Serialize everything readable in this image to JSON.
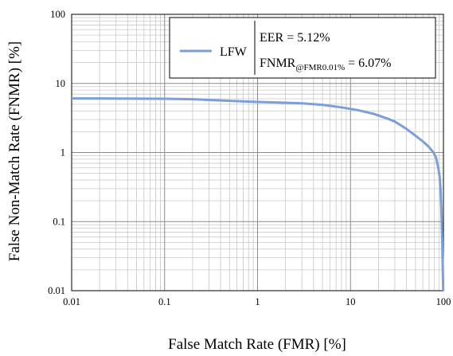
{
  "chart_data": {
    "type": "line",
    "x_scale": "log",
    "y_scale": "log",
    "xlabel": "False Match Rate (FMR) [%]",
    "ylabel": "False Non-Match Rate (FNMR) [%]",
    "xlim": [
      0.01,
      100
    ],
    "ylim": [
      0.01,
      100
    ],
    "x_ticks": [
      0.01,
      0.1,
      1,
      10,
      100
    ],
    "y_ticks": [
      0.01,
      0.1,
      1,
      10,
      100
    ],
    "x_tick_labels": [
      "0.01",
      "0.1",
      "1",
      "10",
      "100"
    ],
    "y_tick_labels": [
      "0.01",
      "0.1",
      "1",
      "10",
      "100"
    ],
    "grid": true,
    "legend_position": "top-right",
    "series": [
      {
        "name": "LFW",
        "color": "#7b9fd9",
        "x": [
          0.01,
          0.03,
          0.1,
          0.2,
          0.5,
          1,
          2,
          3,
          5,
          8,
          12,
          18,
          25,
          30,
          40,
          50,
          60,
          70,
          78,
          83,
          88,
          91,
          93,
          95,
          97,
          98.5,
          99.5
        ],
        "y": [
          6.07,
          6.05,
          6.0,
          5.9,
          5.6,
          5.4,
          5.25,
          5.15,
          4.9,
          4.5,
          4.1,
          3.6,
          3.1,
          2.8,
          2.2,
          1.75,
          1.45,
          1.2,
          1.0,
          0.85,
          0.6,
          0.45,
          0.3,
          0.15,
          0.05,
          0.02,
          0.01
        ]
      }
    ],
    "legend": {
      "series_name": "LFW",
      "eer_text": "EER = 5.12%",
      "fnmr_main": "FNMR",
      "fnmr_sub": "@FMR0.01%",
      "fnmr_value": " = 6.07%"
    }
  }
}
